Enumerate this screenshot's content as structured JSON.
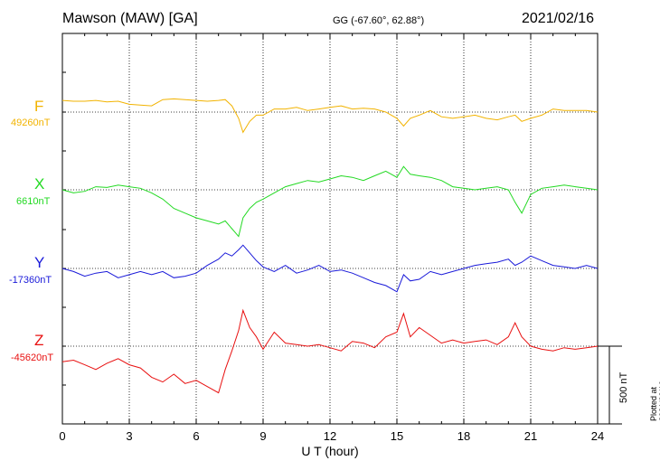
{
  "header": {
    "station": "Mawson (MAW)  [GA]",
    "coords": "GG (-67.60°,  62.88°)",
    "date": "2021/02/16"
  },
  "footer_note": "Plotted at 2021/03/19 01:34  UT",
  "scale_label": "500 nT",
  "colors": {
    "F": "#f2b300",
    "X": "#22d922",
    "Y": "#1a1ad9",
    "Z": "#e81010"
  },
  "chart_data": {
    "type": "line",
    "title": "Mawson (MAW)  [GA]",
    "xlabel": "U T (hour)",
    "ylabel": "",
    "xlim": [
      0,
      24
    ],
    "x_ticks": [
      "0",
      "3",
      "6",
      "9",
      "12",
      "15",
      "18",
      "21",
      "24"
    ],
    "scale_bar_nT": 500,
    "grid": true,
    "series": [
      {
        "name": "F",
        "baseline": "49260nT",
        "x": [
          0,
          0.5,
          1,
          1.5,
          2,
          2.5,
          3,
          3.5,
          4,
          4.5,
          5,
          5.5,
          6,
          6.5,
          7,
          7.3,
          7.6,
          7.9,
          8.1,
          8.4,
          8.7,
          9,
          9.5,
          10,
          10.5,
          11,
          11.5,
          12,
          12.5,
          13,
          13.5,
          14,
          14.5,
          15,
          15.3,
          15.6,
          16,
          16.5,
          17,
          17.5,
          18,
          18.5,
          19,
          19.5,
          20,
          20.3,
          20.6,
          21,
          21.5,
          22,
          22.5,
          23,
          23.5,
          24
        ],
        "y": [
          75,
          70,
          70,
          75,
          65,
          70,
          50,
          45,
          40,
          80,
          85,
          80,
          75,
          70,
          75,
          80,
          40,
          -40,
          -130,
          -60,
          -20,
          -20,
          20,
          20,
          30,
          10,
          20,
          30,
          40,
          20,
          25,
          20,
          0,
          -40,
          -90,
          -40,
          -20,
          10,
          -30,
          -40,
          -30,
          -20,
          -40,
          -50,
          -30,
          -20,
          -60,
          -40,
          -20,
          20,
          10,
          10,
          10,
          0
        ]
      },
      {
        "name": "X",
        "baseline": "6610nT",
        "x": [
          0,
          0.5,
          1,
          1.5,
          2,
          2.5,
          3,
          3.5,
          4,
          4.5,
          5,
          5.5,
          6,
          6.5,
          7,
          7.3,
          7.6,
          7.9,
          8.1,
          8.4,
          8.7,
          9,
          9.5,
          10,
          10.5,
          11,
          11.5,
          12,
          12.5,
          13,
          13.5,
          14,
          14.5,
          15,
          15.3,
          15.6,
          16,
          16.5,
          17,
          17.5,
          18,
          18.5,
          19,
          19.5,
          20,
          20.3,
          20.6,
          21,
          21.5,
          22,
          22.5,
          23,
          23.5,
          24
        ],
        "y": [
          0,
          -20,
          -10,
          20,
          15,
          30,
          20,
          10,
          -20,
          -60,
          -120,
          -150,
          -180,
          -200,
          -220,
          -200,
          -250,
          -300,
          -180,
          -120,
          -80,
          -60,
          -20,
          20,
          40,
          60,
          50,
          70,
          90,
          80,
          60,
          90,
          120,
          80,
          150,
          100,
          90,
          80,
          60,
          20,
          10,
          0,
          10,
          20,
          0,
          -80,
          -150,
          -30,
          10,
          20,
          30,
          20,
          10,
          0
        ]
      },
      {
        "name": "Y",
        "baseline": "-17360nT",
        "x": [
          0,
          0.5,
          1,
          1.5,
          2,
          2.5,
          3,
          3.5,
          4,
          4.5,
          5,
          5.5,
          6,
          6.5,
          7,
          7.3,
          7.6,
          7.9,
          8.1,
          8.4,
          8.7,
          9,
          9.5,
          10,
          10.5,
          11,
          11.5,
          12,
          12.5,
          13,
          13.5,
          14,
          14.5,
          15,
          15.3,
          15.6,
          16,
          16.5,
          17,
          17.5,
          18,
          18.5,
          19,
          19.5,
          20,
          20.3,
          20.6,
          21,
          21.5,
          22,
          22.5,
          23,
          23.5,
          24
        ],
        "y": [
          0,
          -20,
          -50,
          -30,
          -20,
          -60,
          -40,
          -20,
          -40,
          -20,
          -60,
          -50,
          -30,
          20,
          60,
          100,
          80,
          120,
          150,
          100,
          50,
          10,
          -20,
          20,
          -30,
          -10,
          20,
          -20,
          -10,
          -30,
          -60,
          -90,
          -110,
          -150,
          -40,
          -80,
          -70,
          -20,
          -40,
          -20,
          0,
          20,
          30,
          40,
          60,
          20,
          40,
          80,
          50,
          20,
          10,
          0,
          20,
          0
        ]
      },
      {
        "name": "Z",
        "baseline": "-45620nT",
        "x": [
          0,
          0.5,
          1,
          1.5,
          2,
          2.5,
          3,
          3.5,
          4,
          4.5,
          5,
          5.5,
          6,
          6.5,
          7,
          7.3,
          7.6,
          7.9,
          8.1,
          8.4,
          8.7,
          9,
          9.5,
          10,
          10.5,
          11,
          11.5,
          12,
          12.5,
          13,
          13.5,
          14,
          14.5,
          15,
          15.3,
          15.6,
          16,
          16.5,
          17,
          17.5,
          18,
          18.5,
          19,
          19.5,
          20,
          20.3,
          20.6,
          21,
          21.5,
          22,
          22.5,
          23,
          23.5,
          24
        ],
        "y": [
          -100,
          -90,
          -120,
          -150,
          -110,
          -80,
          -120,
          -140,
          -200,
          -230,
          -180,
          -240,
          -220,
          -260,
          -300,
          -150,
          -30,
          100,
          230,
          120,
          60,
          -20,
          90,
          20,
          10,
          0,
          10,
          -10,
          -30,
          30,
          20,
          -10,
          60,
          90,
          210,
          60,
          120,
          70,
          20,
          40,
          20,
          30,
          40,
          10,
          60,
          150,
          60,
          0,
          -20,
          -30,
          -10,
          -20,
          -10,
          0
        ]
      }
    ]
  }
}
